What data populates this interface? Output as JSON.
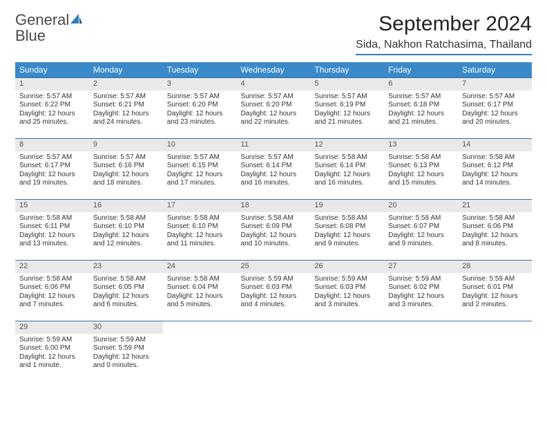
{
  "logo": {
    "text1": "General",
    "text2": "Blue"
  },
  "title": "September 2024",
  "location": "Sida, Nakhon Ratchasima, Thailand",
  "colors": {
    "header_bg": "#3a89c9",
    "header_text": "#ffffff",
    "daynum_bg": "#e9e9e9",
    "row_border": "#3a6fa0",
    "logo_blue": "#2f7bbf"
  },
  "weekdays": [
    "Sunday",
    "Monday",
    "Tuesday",
    "Wednesday",
    "Thursday",
    "Friday",
    "Saturday"
  ],
  "grid": [
    [
      {
        "n": "1",
        "sr": "Sunrise: 5:57 AM",
        "ss": "Sunset: 6:22 PM",
        "d1": "Daylight: 12 hours",
        "d2": "and 25 minutes."
      },
      {
        "n": "2",
        "sr": "Sunrise: 5:57 AM",
        "ss": "Sunset: 6:21 PM",
        "d1": "Daylight: 12 hours",
        "d2": "and 24 minutes."
      },
      {
        "n": "3",
        "sr": "Sunrise: 5:57 AM",
        "ss": "Sunset: 6:20 PM",
        "d1": "Daylight: 12 hours",
        "d2": "and 23 minutes."
      },
      {
        "n": "4",
        "sr": "Sunrise: 5:57 AM",
        "ss": "Sunset: 6:20 PM",
        "d1": "Daylight: 12 hours",
        "d2": "and 22 minutes."
      },
      {
        "n": "5",
        "sr": "Sunrise: 5:57 AM",
        "ss": "Sunset: 6:19 PM",
        "d1": "Daylight: 12 hours",
        "d2": "and 21 minutes."
      },
      {
        "n": "6",
        "sr": "Sunrise: 5:57 AM",
        "ss": "Sunset: 6:18 PM",
        "d1": "Daylight: 12 hours",
        "d2": "and 21 minutes."
      },
      {
        "n": "7",
        "sr": "Sunrise: 5:57 AM",
        "ss": "Sunset: 6:17 PM",
        "d1": "Daylight: 12 hours",
        "d2": "and 20 minutes."
      }
    ],
    [
      {
        "n": "8",
        "sr": "Sunrise: 5:57 AM",
        "ss": "Sunset: 6:17 PM",
        "d1": "Daylight: 12 hours",
        "d2": "and 19 minutes."
      },
      {
        "n": "9",
        "sr": "Sunrise: 5:57 AM",
        "ss": "Sunset: 6:16 PM",
        "d1": "Daylight: 12 hours",
        "d2": "and 18 minutes."
      },
      {
        "n": "10",
        "sr": "Sunrise: 5:57 AM",
        "ss": "Sunset: 6:15 PM",
        "d1": "Daylight: 12 hours",
        "d2": "and 17 minutes."
      },
      {
        "n": "11",
        "sr": "Sunrise: 5:57 AM",
        "ss": "Sunset: 6:14 PM",
        "d1": "Daylight: 12 hours",
        "d2": "and 16 minutes."
      },
      {
        "n": "12",
        "sr": "Sunrise: 5:58 AM",
        "ss": "Sunset: 6:14 PM",
        "d1": "Daylight: 12 hours",
        "d2": "and 16 minutes."
      },
      {
        "n": "13",
        "sr": "Sunrise: 5:58 AM",
        "ss": "Sunset: 6:13 PM",
        "d1": "Daylight: 12 hours",
        "d2": "and 15 minutes."
      },
      {
        "n": "14",
        "sr": "Sunrise: 5:58 AM",
        "ss": "Sunset: 6:12 PM",
        "d1": "Daylight: 12 hours",
        "d2": "and 14 minutes."
      }
    ],
    [
      {
        "n": "15",
        "sr": "Sunrise: 5:58 AM",
        "ss": "Sunset: 6:11 PM",
        "d1": "Daylight: 12 hours",
        "d2": "and 13 minutes."
      },
      {
        "n": "16",
        "sr": "Sunrise: 5:58 AM",
        "ss": "Sunset: 6:10 PM",
        "d1": "Daylight: 12 hours",
        "d2": "and 12 minutes."
      },
      {
        "n": "17",
        "sr": "Sunrise: 5:58 AM",
        "ss": "Sunset: 6:10 PM",
        "d1": "Daylight: 12 hours",
        "d2": "and 11 minutes."
      },
      {
        "n": "18",
        "sr": "Sunrise: 5:58 AM",
        "ss": "Sunset: 6:09 PM",
        "d1": "Daylight: 12 hours",
        "d2": "and 10 minutes."
      },
      {
        "n": "19",
        "sr": "Sunrise: 5:58 AM",
        "ss": "Sunset: 6:08 PM",
        "d1": "Daylight: 12 hours",
        "d2": "and 9 minutes."
      },
      {
        "n": "20",
        "sr": "Sunrise: 5:58 AM",
        "ss": "Sunset: 6:07 PM",
        "d1": "Daylight: 12 hours",
        "d2": "and 9 minutes."
      },
      {
        "n": "21",
        "sr": "Sunrise: 5:58 AM",
        "ss": "Sunset: 6:06 PM",
        "d1": "Daylight: 12 hours",
        "d2": "and 8 minutes."
      }
    ],
    [
      {
        "n": "22",
        "sr": "Sunrise: 5:58 AM",
        "ss": "Sunset: 6:06 PM",
        "d1": "Daylight: 12 hours",
        "d2": "and 7 minutes."
      },
      {
        "n": "23",
        "sr": "Sunrise: 5:58 AM",
        "ss": "Sunset: 6:05 PM",
        "d1": "Daylight: 12 hours",
        "d2": "and 6 minutes."
      },
      {
        "n": "24",
        "sr": "Sunrise: 5:58 AM",
        "ss": "Sunset: 6:04 PM",
        "d1": "Daylight: 12 hours",
        "d2": "and 5 minutes."
      },
      {
        "n": "25",
        "sr": "Sunrise: 5:59 AM",
        "ss": "Sunset: 6:03 PM",
        "d1": "Daylight: 12 hours",
        "d2": "and 4 minutes."
      },
      {
        "n": "26",
        "sr": "Sunrise: 5:59 AM",
        "ss": "Sunset: 6:03 PM",
        "d1": "Daylight: 12 hours",
        "d2": "and 3 minutes."
      },
      {
        "n": "27",
        "sr": "Sunrise: 5:59 AM",
        "ss": "Sunset: 6:02 PM",
        "d1": "Daylight: 12 hours",
        "d2": "and 3 minutes."
      },
      {
        "n": "28",
        "sr": "Sunrise: 5:59 AM",
        "ss": "Sunset: 6:01 PM",
        "d1": "Daylight: 12 hours",
        "d2": "and 2 minutes."
      }
    ],
    [
      {
        "n": "29",
        "sr": "Sunrise: 5:59 AM",
        "ss": "Sunset: 6:00 PM",
        "d1": "Daylight: 12 hours",
        "d2": "and 1 minute."
      },
      {
        "n": "30",
        "sr": "Sunrise: 5:59 AM",
        "ss": "Sunset: 5:59 PM",
        "d1": "Daylight: 12 hours",
        "d2": "and 0 minutes."
      },
      null,
      null,
      null,
      null,
      null
    ]
  ]
}
